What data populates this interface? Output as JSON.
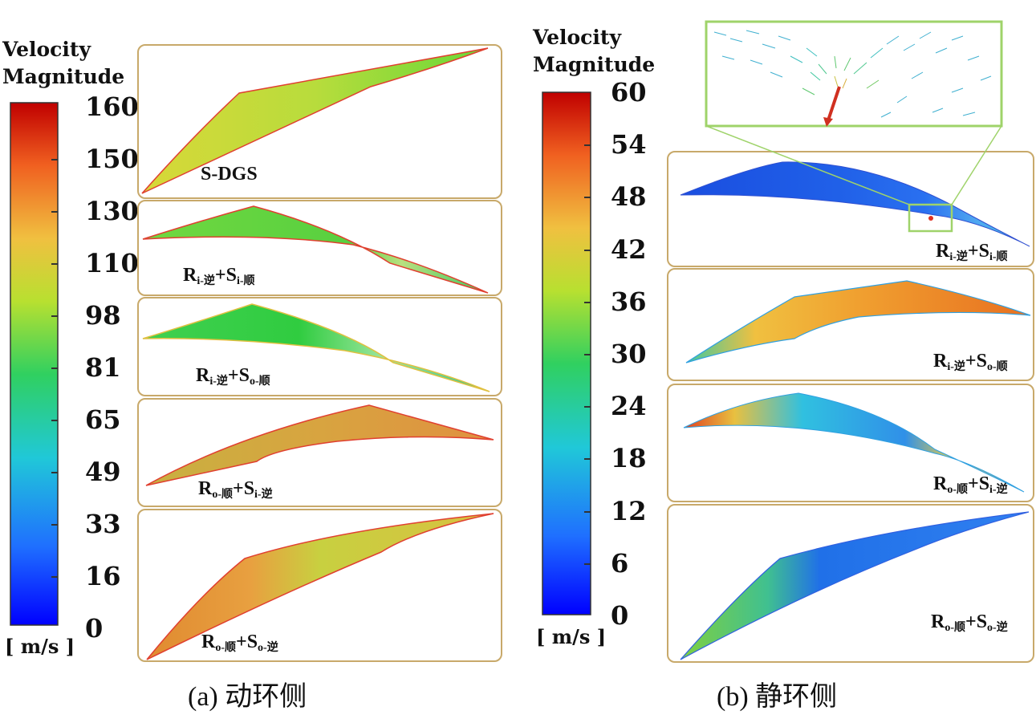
{
  "left": {
    "colorbar": {
      "title_line1": "Velocity",
      "title_line2": "Magnitude",
      "ticks": [
        "160",
        "150",
        "130",
        "110",
        "98",
        "81",
        "65",
        "49",
        "33",
        "16",
        "0"
      ],
      "unit": "[ m/s ]"
    },
    "panels": [
      {
        "label_plain": "S-DGS"
      },
      {
        "label_main1": "R",
        "label_sub1": "i-逆",
        "label_main2": "+S",
        "label_sub2": "i-顺"
      },
      {
        "label_main1": "R",
        "label_sub1": "i-逆",
        "label_main2": "+S",
        "label_sub2": "o-顺"
      },
      {
        "label_main1": "R",
        "label_sub1": "o-顺",
        "label_main2": "+S",
        "label_sub2": "i-逆"
      },
      {
        "label_main1": "R",
        "label_sub1": "o-顺",
        "label_main2": "+S",
        "label_sub2": "o-逆"
      }
    ],
    "caption": "(a) 动环侧"
  },
  "right": {
    "colorbar": {
      "title_line1": "Velocity",
      "title_line2": "Magnitude",
      "ticks": [
        "60",
        "54",
        "48",
        "42",
        "36",
        "30",
        "24",
        "18",
        "12",
        "6",
        "0"
      ],
      "unit": "[ m/s ]"
    },
    "panels": [
      {
        "label_main1": "R",
        "label_sub1": "i-逆",
        "label_main2": "+S",
        "label_sub2": "i-顺"
      },
      {
        "label_main1": "R",
        "label_sub1": "i-逆",
        "label_main2": "+S",
        "label_sub2": "o-顺"
      },
      {
        "label_main1": "R",
        "label_sub1": "o-顺",
        "label_main2": "+S",
        "label_sub2": "i-逆"
      },
      {
        "label_main1": "R",
        "label_sub1": "o-顺",
        "label_main2": "+S",
        "label_sub2": "o-逆"
      }
    ],
    "caption": "(b) 静环侧"
  },
  "colors": {
    "panel_border": "#c8a96a",
    "zoom_box": "#9fd36a"
  }
}
